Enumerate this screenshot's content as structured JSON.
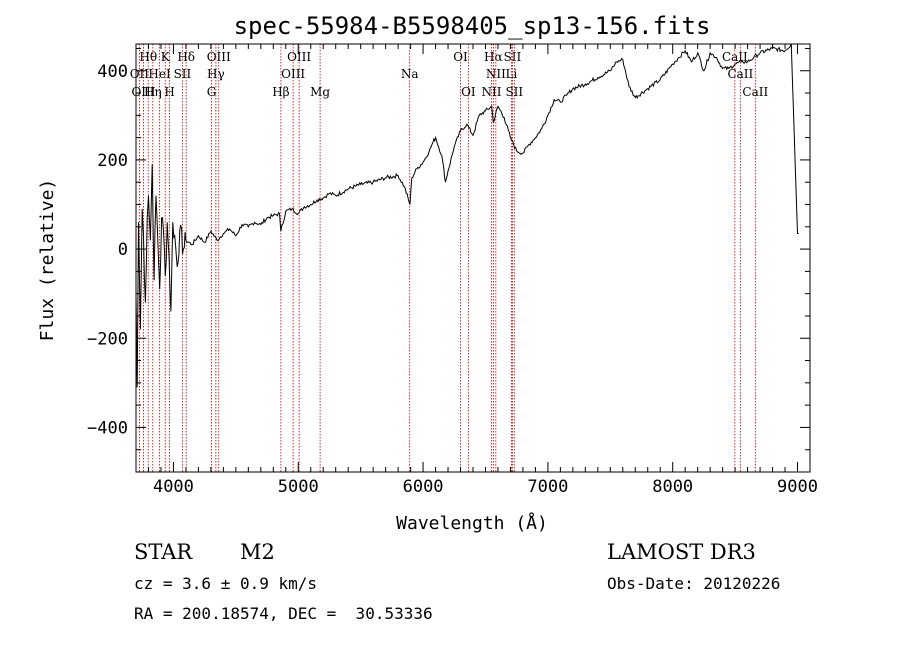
{
  "chart_data": {
    "type": "line",
    "title": "spec-55984-B5598405_sp13-156.fits",
    "xlabel": "Wavelength (Å)",
    "ylabel": "Flux (relative)",
    "xlim": [
      3700,
      9100
    ],
    "ylim": [
      -500,
      460
    ],
    "x_ticks": [
      4000,
      5000,
      6000,
      7000,
      8000,
      9000
    ],
    "y_ticks": [
      -400,
      -200,
      0,
      200,
      400
    ],
    "series": [
      {
        "name": "flux",
        "x": [
          3700,
          3710,
          3720,
          3735,
          3750,
          3760,
          3775,
          3790,
          3800,
          3815,
          3830,
          3845,
          3860,
          3875,
          3890,
          3905,
          3920,
          3935,
          3950,
          3965,
          3980,
          3995,
          4010,
          4030,
          4050,
          4080,
          4100,
          4150,
          4200,
          4250,
          4300,
          4350,
          4400,
          4450,
          4500,
          4550,
          4600,
          4650,
          4700,
          4750,
          4800,
          4850,
          4860,
          4900,
          4950,
          5000,
          5050,
          5100,
          5150,
          5200,
          5250,
          5300,
          5400,
          5500,
          5600,
          5700,
          5800,
          5850,
          5895,
          5910,
          5950,
          6000,
          6050,
          6080,
          6100,
          6150,
          6180,
          6200,
          6250,
          6300,
          6350,
          6400,
          6450,
          6500,
          6550,
          6563,
          6600,
          6650,
          6700,
          6750,
          6800,
          6850,
          6900,
          6950,
          7000,
          7050,
          7100,
          7150,
          7200,
          7300,
          7400,
          7500,
          7550,
          7600,
          7650,
          7700,
          7800,
          7900,
          8000,
          8050,
          8100,
          8150,
          8200,
          8250,
          8300,
          8350,
          8400,
          8450,
          8500,
          8550,
          8600,
          8650,
          8700,
          8800,
          8900,
          8950,
          9000,
          9010
        ],
        "values": [
          -100,
          -310,
          60,
          -180,
          90,
          30,
          -120,
          70,
          120,
          20,
          190,
          -70,
          120,
          20,
          -90,
          70,
          40,
          -60,
          60,
          -20,
          -140,
          60,
          30,
          -40,
          40,
          0,
          20,
          10,
          30,
          15,
          40,
          20,
          35,
          45,
          30,
          55,
          50,
          60,
          55,
          70,
          75,
          80,
          40,
          85,
          90,
          80,
          95,
          100,
          110,
          115,
          125,
          120,
          135,
          145,
          150,
          160,
          165,
          140,
          100,
          160,
          180,
          195,
          220,
          240,
          250,
          210,
          150,
          175,
          230,
          265,
          280,
          255,
          300,
          310,
          320,
          285,
          320,
          295,
          250,
          220,
          215,
          235,
          250,
          270,
          300,
          335,
          330,
          345,
          360,
          370,
          385,
          400,
          420,
          425,
          365,
          340,
          360,
          380,
          415,
          430,
          445,
          420,
          440,
          400,
          440,
          430,
          405,
          405,
          415,
          420,
          420,
          430,
          440,
          450,
          445,
          460,
          35,
          35
        ]
      }
    ],
    "lines": [
      {
        "name": "Hθ",
        "x": 3798,
        "row": 0
      },
      {
        "name": "K",
        "x": 3934,
        "row": 0
      },
      {
        "name": "Hδ",
        "x": 4102,
        "row": 0
      },
      {
        "name": "OIII",
        "x": 4363,
        "row": 0
      },
      {
        "name": "OIII",
        "x": 5007,
        "row": 0
      },
      {
        "name": "OI",
        "x": 6300,
        "row": 0
      },
      {
        "name": "Hα",
        "x": 6563,
        "row": 0
      },
      {
        "name": "SII",
        "x": 6716,
        "row": 0
      },
      {
        "name": "CaII",
        "x": 8498,
        "row": 0
      },
      {
        "name": "OII",
        "x": 3727,
        "row": 1
      },
      {
        "name": "HeI",
        "x": 3889,
        "row": 1
      },
      {
        "name": "SII",
        "x": 4072,
        "row": 1
      },
      {
        "name": "Hγ",
        "x": 4340,
        "row": 1
      },
      {
        "name": "OIII",
        "x": 4959,
        "row": 1
      },
      {
        "name": "Na",
        "x": 5893,
        "row": 1
      },
      {
        "name": "NII",
        "x": 6583,
        "row": 1
      },
      {
        "name": "Li",
        "x": 6708,
        "row": 1
      },
      {
        "name": "CaII",
        "x": 8542,
        "row": 1
      },
      {
        "name": "OIII",
        "x": 3760,
        "row": 2
      },
      {
        "name": "Hη",
        "x": 3835,
        "row": 2
      },
      {
        "name": "H",
        "x": 3969,
        "row": 2
      },
      {
        "name": "G",
        "x": 4305,
        "row": 2
      },
      {
        "name": "Hβ",
        "x": 4861,
        "row": 2
      },
      {
        "name": "Mg",
        "x": 5175,
        "row": 2
      },
      {
        "name": "OI",
        "x": 6363,
        "row": 2
      },
      {
        "name": "NII",
        "x": 6548,
        "row": 2
      },
      {
        "name": "SII",
        "x": 6731,
        "row": 2
      },
      {
        "name": "CaII",
        "x": 8662,
        "row": 2
      }
    ]
  },
  "info": {
    "object_class": "STAR",
    "subclass": "M2",
    "survey": "LAMOST DR3",
    "cz": "cz = 3.6 ± 0.9 km/s",
    "obs_date": "Obs-Date: 20120226",
    "radec": "RA = 200.18574, DEC =  30.53336"
  }
}
